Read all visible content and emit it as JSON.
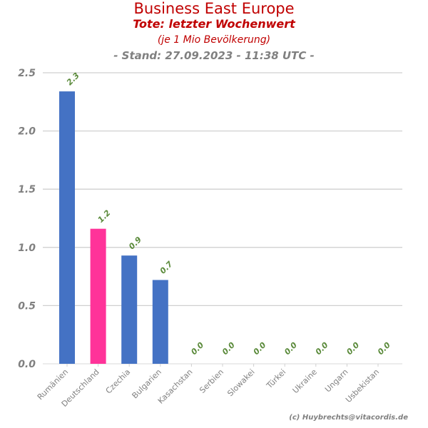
{
  "chart_data": {
    "type": "bar",
    "title": "Business East Europe",
    "subtitle": "Tote: letzter Wochenwert",
    "subtitle2": "(je 1 Mio Bevölkerung)",
    "subtitle3": "- Stand: 27.09.2023 - 11:38 UTC -",
    "xlabel": "",
    "ylabel": "",
    "ylim": [
      0,
      2.5
    ],
    "yticks": [
      "0.0",
      "0.5",
      "1.0",
      "1.5",
      "2.0",
      "2.5"
    ],
    "categories": [
      "Rumänien",
      "Deutschland",
      "Czechia",
      "Bulgarien",
      "Kasachstan",
      "Serbien",
      "Slowakei",
      "Türkei",
      "Ukraine",
      "Ungarn",
      "Usbekistan"
    ],
    "values": [
      2.34,
      1.16,
      0.93,
      0.72,
      0.0,
      0.0,
      0.0,
      0.0,
      0.0,
      0.0,
      0.0
    ],
    "labels": [
      "2.3",
      "1.2",
      "0.9",
      "0.7",
      "0.0",
      "0.0",
      "0.0",
      "0.0",
      "0.0",
      "0.0",
      "0.0"
    ],
    "colors": [
      "#4472c4",
      "#ff3399",
      "#4472c4",
      "#4472c4",
      "#4472c4",
      "#4472c4",
      "#4472c4",
      "#4472c4",
      "#4472c4",
      "#4472c4",
      "#4472c4"
    ],
    "label_color": "#5a8a3a",
    "grid": true
  },
  "copyright": "(c) Huybrechts@vitacordis.de"
}
